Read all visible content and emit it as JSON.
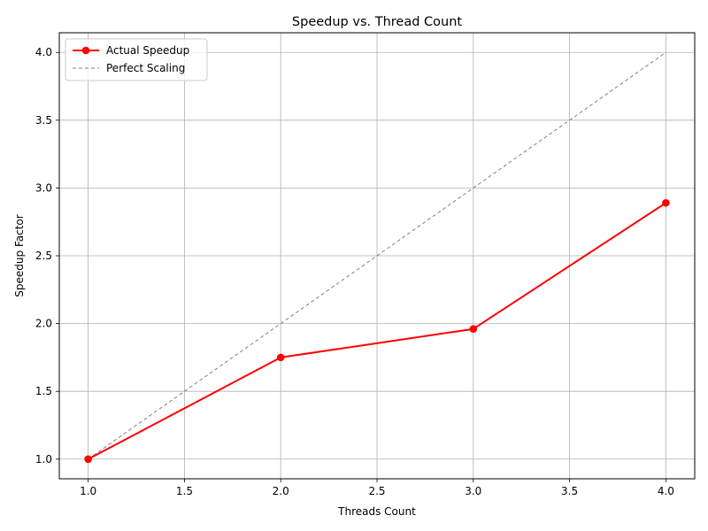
{
  "chart_data": {
    "type": "line",
    "title": "Speedup vs. Thread Count",
    "xlabel": "Threads Count",
    "ylabel": "Speedup Factor",
    "xlim": [
      0.85,
      4.15
    ],
    "ylim": [
      0.855,
      4.145
    ],
    "xticks": [
      1.0,
      1.5,
      2.0,
      2.5,
      3.0,
      3.5,
      4.0
    ],
    "xtick_labels": [
      "1.0",
      "1.5",
      "2.0",
      "2.5",
      "3.0",
      "3.5",
      "4.0"
    ],
    "yticks": [
      1.0,
      1.5,
      2.0,
      2.5,
      3.0,
      3.5,
      4.0
    ],
    "ytick_labels": [
      "1.0",
      "1.5",
      "2.0",
      "2.5",
      "3.0",
      "3.5",
      "4.0"
    ],
    "grid": true,
    "legend_position": "top-left",
    "series": [
      {
        "name": "Actual Speedup",
        "x": [
          1,
          2,
          3,
          4
        ],
        "y": [
          1.0,
          1.75,
          1.96,
          2.89
        ],
        "color": "#ff0000",
        "style": "solid",
        "markers": true
      },
      {
        "name": "Perfect Scaling",
        "x": [
          1,
          4
        ],
        "y": [
          1.0,
          4.0
        ],
        "color": "#808080",
        "style": "dashed",
        "markers": false
      }
    ]
  }
}
